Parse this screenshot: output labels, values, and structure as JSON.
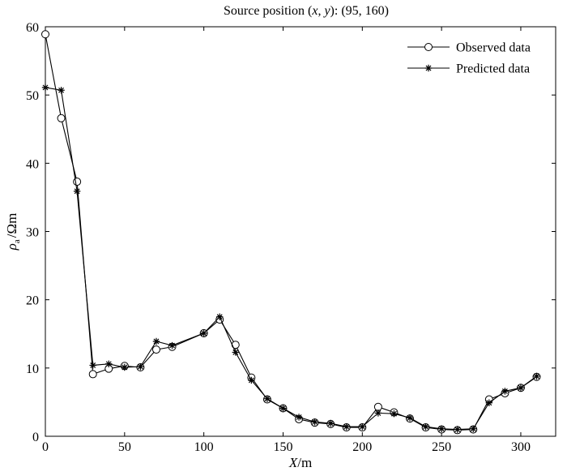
{
  "chart_data": {
    "type": "line",
    "title": "Source position (x, y): (95, 160)",
    "title_parts": {
      "prefix": "Source position (",
      "x": "x",
      "sep": ", ",
      "y": "y",
      "suffix": "): (95, 160)"
    },
    "xlabel": "X/m",
    "xlabel_parts": {
      "var": "X",
      "unit": "/m"
    },
    "ylabel": "ρa/Ωm",
    "ylabel_parts": {
      "var": "ρ",
      "sub": "a",
      "unit": "/Ωm"
    },
    "xlim": [
      0,
      322
    ],
    "ylim": [
      0,
      60
    ],
    "xticks": [
      0,
      50,
      100,
      150,
      200,
      250,
      300
    ],
    "yticks": [
      0,
      10,
      20,
      30,
      40,
      50,
      60
    ],
    "grid": false,
    "legend_position": "top-right",
    "x": [
      0,
      10,
      20,
      30,
      40,
      50,
      60,
      70,
      80,
      100,
      110,
      120,
      130,
      140,
      150,
      160,
      170,
      180,
      190,
      200,
      210,
      220,
      230,
      240,
      250,
      260,
      270,
      280,
      290,
      300,
      310
    ],
    "series": [
      {
        "name": "Observed data",
        "marker": "circle",
        "values": [
          58.9,
          46.6,
          37.3,
          9.1,
          9.9,
          10.3,
          10.1,
          12.7,
          13.1,
          15.1,
          17.1,
          13.4,
          8.6,
          5.4,
          4.1,
          2.5,
          2.0,
          1.8,
          1.3,
          1.3,
          4.3,
          3.5,
          2.6,
          1.3,
          1.0,
          0.9,
          1.0,
          5.4,
          6.3,
          7.1,
          8.7
        ]
      },
      {
        "name": "Predicted data",
        "marker": "asterisk",
        "values": [
          51.1,
          50.7,
          35.9,
          10.4,
          10.6,
          10.1,
          10.2,
          13.9,
          13.3,
          15.1,
          17.5,
          12.3,
          8.2,
          5.5,
          4.1,
          2.8,
          2.1,
          1.9,
          1.4,
          1.4,
          3.4,
          3.3,
          2.7,
          1.4,
          1.1,
          1.0,
          1.1,
          4.9,
          6.6,
          7.1,
          8.8
        ]
      }
    ]
  }
}
